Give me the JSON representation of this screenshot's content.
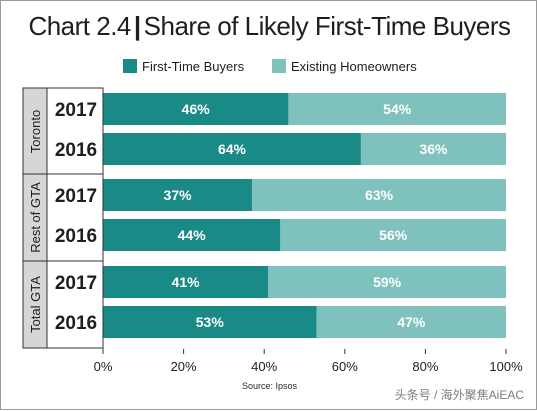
{
  "title": {
    "prefix": "Chart 2.4",
    "separator": "|",
    "main": "Share of Likely First-Time Buyers"
  },
  "legend": {
    "first_time": "First-Time Buyers",
    "existing": "Existing Homeowners"
  },
  "colors": {
    "first_time": "#1a8a86",
    "existing": "#7fc1bd",
    "group_band": "#d6d6d6"
  },
  "source": "Source: Ipsos",
  "watermark": "头条号 / 海外聚焦AiEAC",
  "chart_data": {
    "type": "bar",
    "orientation": "horizontal",
    "stacked": true,
    "groups": [
      {
        "name": "Toronto",
        "rows": [
          {
            "year": "2017",
            "values": [
              46,
              54
            ]
          },
          {
            "year": "2016",
            "values": [
              64,
              36
            ]
          }
        ]
      },
      {
        "name": "Rest of GTA",
        "rows": [
          {
            "year": "2017",
            "values": [
              37,
              63
            ]
          },
          {
            "year": "2016",
            "values": [
              44,
              56
            ]
          }
        ]
      },
      {
        "name": "Total GTA",
        "rows": [
          {
            "year": "2017",
            "values": [
              41,
              59
            ]
          },
          {
            "year": "2016",
            "values": [
              53,
              47
            ]
          }
        ]
      }
    ],
    "series": [
      {
        "name": "First-Time Buyers"
      },
      {
        "name": "Existing Homeowners"
      }
    ],
    "xlim": [
      0,
      100
    ],
    "x_ticks": [
      "0%",
      "20%",
      "40%",
      "60%",
      "80%",
      "100%"
    ],
    "value_suffix": "%",
    "legend_position": "top",
    "grid": false
  }
}
